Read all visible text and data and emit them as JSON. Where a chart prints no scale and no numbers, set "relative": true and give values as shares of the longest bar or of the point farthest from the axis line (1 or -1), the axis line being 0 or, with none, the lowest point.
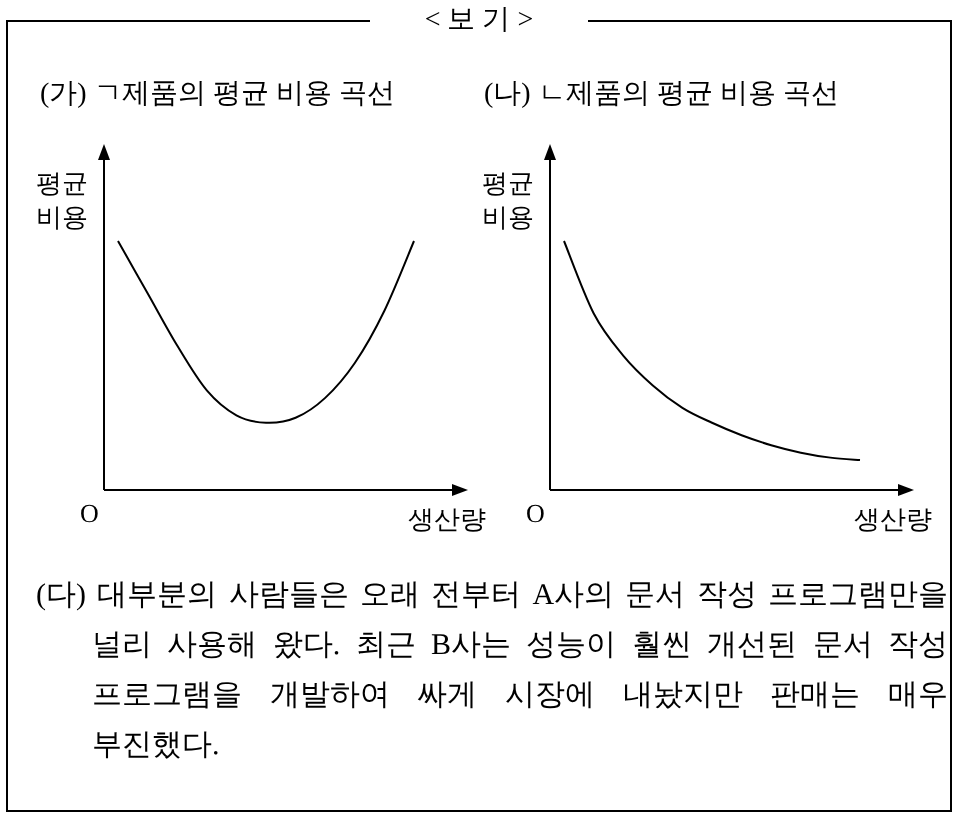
{
  "chart_data": [
    {
      "type": "line",
      "title": "(가) ㄱ제품의 평균 비용 곡선",
      "ylabel": "평균 비용",
      "xlabel": "생산량",
      "annotations": [
        "O"
      ],
      "relative": true,
      "categories": [
        null,
        null,
        null,
        null,
        null,
        null,
        null,
        null,
        null,
        null,
        null
      ],
      "series": [
        {
          "color": "#000000",
          "values": [
            1,
            0.79,
            0.58,
            0.4,
            0.3,
            0.27,
            0.29,
            0.37,
            0.51,
            0.72,
            1
          ]
        }
      ]
    },
    {
      "type": "line",
      "title": "(나) ㄴ제품의 평균 비용 곡선",
      "ylabel": "평균 비용",
      "xlabel": "생산량",
      "annotations": [
        "O"
      ],
      "relative": true,
      "categories": [
        null,
        null,
        null,
        null,
        null,
        null,
        null,
        null,
        null,
        null,
        null
      ],
      "series": [
        {
          "color": "#000000",
          "values": [
            1,
            0.71,
            0.54,
            0.42,
            0.33,
            0.27,
            0.22,
            0.18,
            0.15,
            0.13,
            0.12
          ]
        }
      ]
    },
    {
      "type": "other",
      "title": "< 보 기 >",
      "annotations": [
        "(다) 대부분의 사람들은 오래 전부터 A사의 문서 작성 프로그램만을 널리 사용해 왔다. 최근 B사는 성능이 훨씬 개선된 문서 작성 프로그램을 개발하여 싸게 시장에 내놨지만 판매는 매우 부진했다."
      ]
    }
  ]
}
